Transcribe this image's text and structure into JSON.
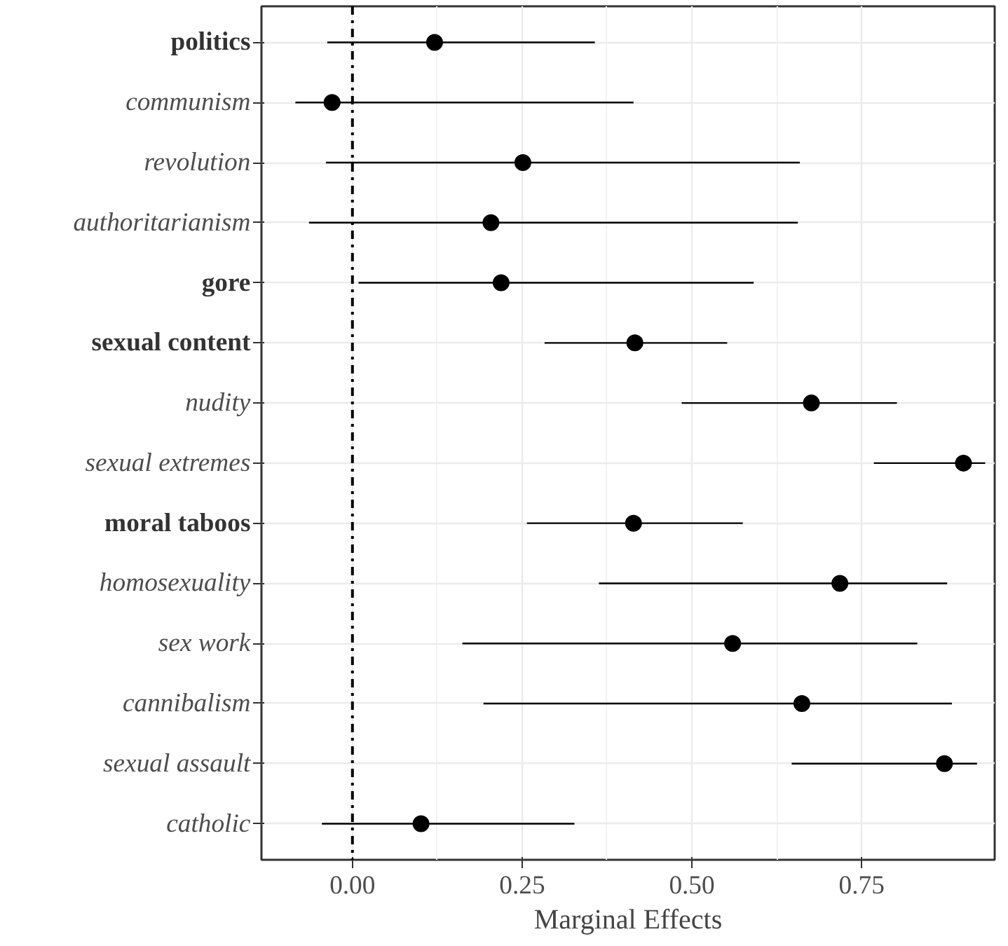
{
  "chart_data": {
    "type": "scatter",
    "xlabel": "Marginal Effects",
    "categories": [
      "politics",
      "communism",
      "revolution",
      "authoritarianism",
      "gore",
      "sexual content",
      "nudity",
      "sexual extremes",
      "moral taboos",
      "homosexuality",
      "sex work",
      "cannibalism",
      "sexual assault",
      "catholic"
    ],
    "orientation": "horizontal",
    "values": [
      0.121,
      -0.03,
      0.251,
      0.204,
      0.219,
      0.416,
      0.676,
      0.9,
      0.414,
      0.718,
      0.56,
      0.662,
      0.872,
      0.101
    ],
    "errors": [
      [
        -0.037,
        0.357
      ],
      [
        -0.084,
        0.414
      ],
      [
        -0.039,
        0.659
      ],
      [
        -0.064,
        0.656
      ],
      [
        0.009,
        0.591
      ],
      [
        0.283,
        0.552
      ],
      [
        0.485,
        0.802
      ],
      [
        0.768,
        0.932
      ],
      [
        0.257,
        0.575
      ],
      [
        0.363,
        0.876
      ],
      [
        0.162,
        0.832
      ],
      [
        0.193,
        0.883
      ],
      [
        0.647,
        0.92
      ],
      [
        -0.045,
        0.327
      ]
    ],
    "color": "#000000",
    "marker": "circle",
    "xlim": [
      -0.134,
      0.946
    ],
    "xticks": [
      {
        "value": 0,
        "label": "0.00"
      },
      {
        "value": 0.25,
        "label": "0.25"
      },
      {
        "value": 0.5,
        "label": "0.50"
      },
      {
        "value": 0.75,
        "label": "0.75"
      }
    ],
    "ref_lines": [
      {
        "axis": "x",
        "value": 0,
        "line_style": "dashdot",
        "color": "#000000"
      }
    ],
    "grid": true
  }
}
